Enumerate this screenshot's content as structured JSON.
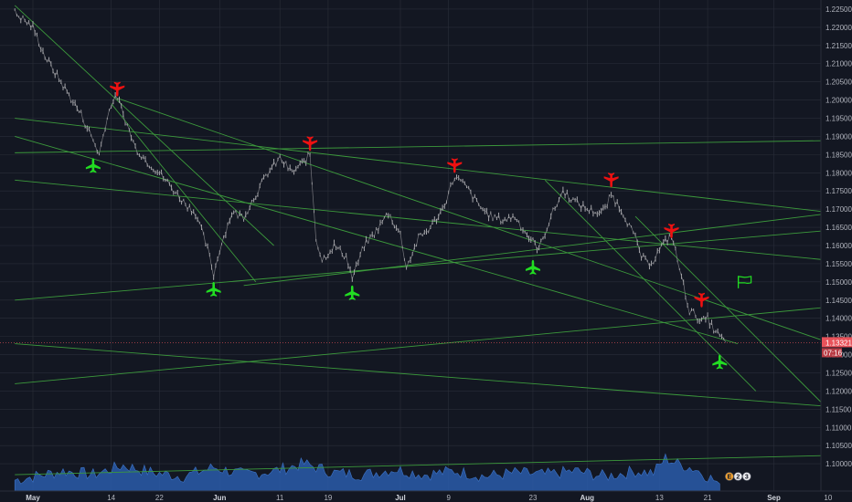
{
  "chart_data": {
    "type": "candlestick",
    "title": "",
    "colors": {
      "background": "#131722",
      "grid": "#2a2e39",
      "candle": "#b8b8bc",
      "trendline": "#3c9a3c",
      "buy_marker": "#22dd22",
      "sell_marker": "#ee1111",
      "volume": "#2a5caa",
      "price_tag": "#e8525a"
    },
    "y_axis": {
      "min": 1.0925,
      "max": 1.2275,
      "ticks": [
        "1.22500",
        "1.22000",
        "1.21500",
        "1.21000",
        "1.20500",
        "1.20000",
        "1.19500",
        "1.19000",
        "1.18500",
        "1.18000",
        "1.17500",
        "1.17000",
        "1.16500",
        "1.16000",
        "1.15500",
        "1.15000",
        "1.14500",
        "1.14000",
        "1.13500",
        "1.13000",
        "1.12500",
        "1.12000",
        "1.11500",
        "1.11000",
        "1.10500",
        "1.10000"
      ]
    },
    "x_axis": {
      "ticks": [
        {
          "label": "May",
          "day": 0,
          "bold": true
        },
        {
          "label": "14",
          "day": 13
        },
        {
          "label": "22",
          "day": 21
        },
        {
          "label": "Jun",
          "day": 31,
          "bold": true
        },
        {
          "label": "11",
          "day": 41
        },
        {
          "label": "19",
          "day": 49
        },
        {
          "label": "Jul",
          "day": 61,
          "bold": true
        },
        {
          "label": "9",
          "day": 69
        },
        {
          "label": "23",
          "day": 83
        },
        {
          "label": "Aug",
          "day": 92,
          "bold": true
        },
        {
          "label": "13",
          "day": 104
        },
        {
          "label": "21",
          "day": 112
        },
        {
          "label": "Sep",
          "day": 123,
          "bold": true
        },
        {
          "label": "10",
          "day": 132
        }
      ],
      "last_day": 135
    },
    "price_path": [
      [
        -3,
        1.224
      ],
      [
        0,
        1.22
      ],
      [
        2,
        1.212
      ],
      [
        5,
        1.204
      ],
      [
        8,
        1.196
      ],
      [
        10,
        1.189
      ],
      [
        11,
        1.185
      ],
      [
        12,
        1.193
      ],
      [
        13,
        1.199
      ],
      [
        14,
        1.201
      ],
      [
        15,
        1.196
      ],
      [
        17,
        1.187
      ],
      [
        19,
        1.183
      ],
      [
        21,
        1.18
      ],
      [
        23,
        1.176
      ],
      [
        25,
        1.172
      ],
      [
        27,
        1.169
      ],
      [
        29,
        1.159
      ],
      [
        30,
        1.152
      ],
      [
        31,
        1.159
      ],
      [
        33,
        1.169
      ],
      [
        35,
        1.168
      ],
      [
        37,
        1.174
      ],
      [
        39,
        1.18
      ],
      [
        41,
        1.184
      ],
      [
        43,
        1.18
      ],
      [
        45,
        1.183
      ],
      [
        46,
        1.185
      ],
      [
        47,
        1.162
      ],
      [
        48,
        1.156
      ],
      [
        50,
        1.16
      ],
      [
        52,
        1.157
      ],
      [
        53,
        1.151
      ],
      [
        55,
        1.16
      ],
      [
        57,
        1.164
      ],
      [
        59,
        1.169
      ],
      [
        61,
        1.163
      ],
      [
        62,
        1.154
      ],
      [
        64,
        1.162
      ],
      [
        66,
        1.165
      ],
      [
        68,
        1.17
      ],
      [
        70,
        1.179
      ],
      [
        72,
        1.176
      ],
      [
        74,
        1.171
      ],
      [
        76,
        1.168
      ],
      [
        78,
        1.167
      ],
      [
        80,
        1.168
      ],
      [
        82,
        1.163
      ],
      [
        84,
        1.159
      ],
      [
        86,
        1.168
      ],
      [
        88,
        1.175
      ],
      [
        90,
        1.172
      ],
      [
        92,
        1.17
      ],
      [
        94,
        1.169
      ],
      [
        95,
        1.17
      ],
      [
        96,
        1.174
      ],
      [
        98,
        1.169
      ],
      [
        100,
        1.162
      ],
      [
        101,
        1.157
      ],
      [
        102,
        1.155
      ],
      [
        103,
        1.156
      ],
      [
        104,
        1.159
      ],
      [
        105,
        1.161
      ],
      [
        106,
        1.163
      ],
      [
        107,
        1.156
      ],
      [
        108,
        1.149
      ],
      [
        109,
        1.142
      ],
      [
        110,
        1.141
      ],
      [
        111,
        1.139
      ],
      [
        112,
        1.14
      ],
      [
        113,
        1.137
      ],
      [
        114,
        1.135
      ],
      [
        115,
        1.1333
      ]
    ],
    "last_price": "1.13321",
    "countdown": "07:16",
    "trendlines": [
      [
        [
          -3,
          1.226
        ],
        [
          40,
          1.16
        ]
      ],
      [
        [
          -3,
          1.19
        ],
        [
          117,
          1.133
        ]
      ],
      [
        [
          13,
          1.199
        ],
        [
          37,
          1.15
        ]
      ],
      [
        [
          14,
          1.2005
        ],
        [
          138,
          1.13
        ]
      ],
      [
        [
          -3,
          1.195
        ],
        [
          138,
          1.168
        ]
      ],
      [
        [
          -3,
          1.1855
        ],
        [
          138,
          1.189
        ]
      ],
      [
        [
          -3,
          1.178
        ],
        [
          138,
          1.155
        ]
      ],
      [
        [
          -3,
          1.145
        ],
        [
          138,
          1.165
        ]
      ],
      [
        [
          -3,
          1.133
        ],
        [
          138,
          1.115
        ]
      ],
      [
        [
          -3,
          1.122
        ],
        [
          138,
          1.144
        ]
      ],
      [
        [
          35,
          1.149
        ],
        [
          138,
          1.17
        ]
      ],
      [
        [
          85,
          1.178
        ],
        [
          120,
          1.12
        ]
      ],
      [
        [
          100,
          1.168
        ],
        [
          132,
          1.115
        ]
      ],
      [
        [
          -3,
          1.097
        ],
        [
          138,
          1.1025
        ]
      ]
    ],
    "markers": [
      {
        "type": "sell",
        "day": 14,
        "price": 1.203
      },
      {
        "type": "buy",
        "day": 10,
        "price": 1.182
      },
      {
        "type": "buy",
        "day": 30,
        "price": 1.148
      },
      {
        "type": "sell",
        "day": 46,
        "price": 1.188
      },
      {
        "type": "buy",
        "day": 53,
        "price": 1.147
      },
      {
        "type": "sell",
        "day": 70,
        "price": 1.182
      },
      {
        "type": "buy",
        "day": 83,
        "price": 1.154
      },
      {
        "type": "sell",
        "day": 96,
        "price": 1.178
      },
      {
        "type": "sell",
        "day": 106,
        "price": 1.164
      },
      {
        "type": "sell",
        "day": 111,
        "price": 1.145
      },
      {
        "type": "buy",
        "day": 114,
        "price": 1.128
      },
      {
        "type": "flag",
        "day": 118,
        "price": 1.15
      }
    ],
    "volume_path": [
      [
        -3,
        0.3
      ],
      [
        5,
        0.55
      ],
      [
        10,
        0.45
      ],
      [
        15,
        0.7
      ],
      [
        20,
        0.5
      ],
      [
        25,
        0.4
      ],
      [
        30,
        0.65
      ],
      [
        35,
        0.45
      ],
      [
        40,
        0.55
      ],
      [
        45,
        0.75
      ],
      [
        50,
        0.5
      ],
      [
        55,
        0.45
      ],
      [
        60,
        0.6
      ],
      [
        65,
        0.45
      ],
      [
        70,
        0.55
      ],
      [
        75,
        0.4
      ],
      [
        80,
        0.5
      ],
      [
        85,
        0.45
      ],
      [
        90,
        0.55
      ],
      [
        95,
        0.4
      ],
      [
        100,
        0.55
      ],
      [
        103,
        0.5
      ],
      [
        105,
        0.9
      ],
      [
        107,
        0.75
      ],
      [
        110,
        0.6
      ],
      [
        112,
        0.4
      ],
      [
        114,
        0.2
      ]
    ],
    "event_badges": [
      "E",
      "2",
      "3"
    ]
  }
}
